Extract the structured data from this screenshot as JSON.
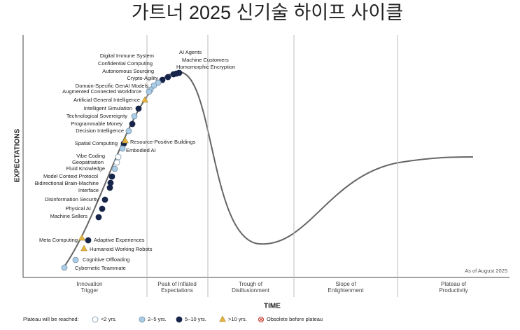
{
  "title": "가트너 2025 신기술 하이프 사이클",
  "y_axis_label": "EXPECTATIONS",
  "x_axis_label": "TIME",
  "note": "As of August 2025",
  "phases": [
    [
      "Innovation",
      "Trigger"
    ],
    [
      "Peak of Inflated",
      "Expectations"
    ],
    [
      "Trough of",
      "Disillusionment"
    ],
    [
      "Slope of",
      "Enlightenment"
    ],
    [
      "Plateau of",
      "Productivity"
    ]
  ],
  "technologies": [
    "Digital Immune System",
    "Confidential Computing",
    "Autonomous Sourcing",
    "Crypto-Agility",
    "Domain-Specific GenAI Models",
    "Augmented Connected Workforce",
    "AI Agents",
    "Machine Customers",
    "Homomorphic Encryption",
    "Artificial General Intelligence",
    "Intelligent Simulation",
    "Technological Sovereignty",
    "Programmable Money",
    "Decision Intelligence",
    "Spatial Computing",
    "Resource-Positive Buildings",
    "Embodied AI",
    "Vibe Coding",
    "Geopatriation",
    "Fluid Knowledge",
    "Model Context Protocol",
    "Bidirectional Brain-Machine",
    "Interface",
    "Disinformation Security",
    "Physical AI",
    "Machine Sellers",
    "Meta Computing",
    "Adaptive Experiences",
    "Humanoid Working Robots",
    "Cognitive Offloading",
    "Cybernetic Teammate"
  ],
  "legend": {
    "title": "Plateau will be reached:",
    "items": [
      "<2 yrs.",
      "2–5 yrs.",
      "5–10 yrs.",
      ">10 yrs.",
      "Obsolete before plateau"
    ]
  }
}
